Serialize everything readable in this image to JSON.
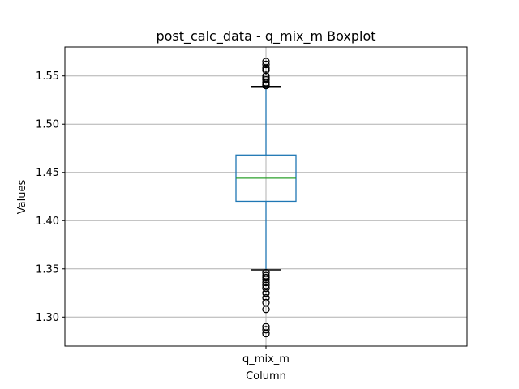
{
  "chart_data": {
    "type": "box",
    "title": "post_calc_data - q_mix_m Boxplot",
    "xlabel": "Column",
    "ylabel": "Values",
    "categories": [
      "q_mix_m"
    ],
    "ylim": [
      1.27,
      1.58
    ],
    "yticks": [
      1.3,
      1.35,
      1.4,
      1.45,
      1.5,
      1.55
    ],
    "ytick_labels": [
      "1.30",
      "1.35",
      "1.40",
      "1.45",
      "1.50",
      "1.55"
    ],
    "grid": true,
    "boxes": [
      {
        "name": "q_mix_m",
        "whisker_low": 1.349,
        "q1": 1.42,
        "median": 1.444,
        "q3": 1.468,
        "whisker_high": 1.539,
        "outliers_high": [
          1.54,
          1.541,
          1.543,
          1.546,
          1.548,
          1.55,
          1.556,
          1.558,
          1.562,
          1.565
        ],
        "outliers_low": [
          1.346,
          1.343,
          1.341,
          1.339,
          1.336,
          1.333,
          1.33,
          1.325,
          1.32,
          1.315,
          1.308,
          1.29,
          1.287,
          1.283
        ]
      }
    ],
    "colors": {
      "box": "#1f77b4",
      "median": "#2ca02c",
      "whisker_cap": "#000000",
      "grid": "#b0b0b0"
    }
  }
}
